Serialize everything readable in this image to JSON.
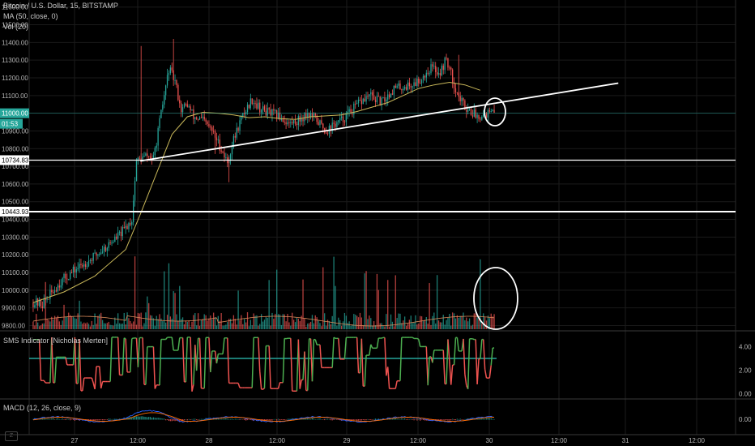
{
  "header": {
    "symbol_line": "Bitcoin / U.S. Dollar, 15, BITSTAMP",
    "ma_label": "MA (50, close, 0)",
    "vol_label": "Vol (20)"
  },
  "price_tags": {
    "current": "11000.00",
    "countdown": "01:53",
    "line_high": "10734.83",
    "line_low": "10443.93"
  },
  "sms_label": "SMS Indicator [Nicholas Merten]",
  "macd_label": "MACD (12, 26, close, 9)",
  "logo_text": "Z",
  "colors": {
    "background": "#000000",
    "up": "#26a69a",
    "down": "#ef5350",
    "ma": "#c9b85a",
    "sms_up": "#4caf50",
    "sms_down": "#ef5350",
    "current_price_tag": "#26a69a",
    "drawing": "#ffffff"
  },
  "chart_data": [
    {
      "type": "candlestick",
      "title": "Bitcoin / U.S. Dollar, 15, BITSTAMP",
      "y_axis_ticks": [
        "11600.00",
        "11500.00",
        "11400.00",
        "11300.00",
        "11200.00",
        "11100.00",
        "11000.00",
        "10900.00",
        "10800.00",
        "10700.00",
        "10600.00",
        "10500.00",
        "10400.00",
        "10300.00",
        "10200.00",
        "10100.00",
        "10000.00",
        "9900.00",
        "9800.00"
      ],
      "ylim": [
        9770,
        11640
      ],
      "x_axis_ticks": [
        "27",
        "12:00",
        "28",
        "12:00",
        "29",
        "12:00",
        "30",
        "12:00",
        "31",
        "12:00"
      ],
      "price_path": [
        [
          0,
          9930
        ],
        [
          6,
          9920
        ],
        [
          18,
          10050
        ],
        [
          28,
          10120
        ],
        [
          38,
          10180
        ],
        [
          48,
          10250
        ],
        [
          58,
          10330
        ],
        [
          64,
          10400
        ],
        [
          67,
          10730
        ],
        [
          74,
          10760
        ],
        [
          78,
          10740
        ],
        [
          84,
          11050
        ],
        [
          88,
          11250
        ],
        [
          92,
          11180
        ],
        [
          96,
          11020
        ],
        [
          100,
          11050
        ],
        [
          104,
          10980
        ],
        [
          110,
          10960
        ],
        [
          116,
          10900
        ],
        [
          122,
          10800
        ],
        [
          126,
          10720
        ],
        [
          130,
          10850
        ],
        [
          134,
          10950
        ],
        [
          138,
          11020
        ],
        [
          142,
          11080
        ],
        [
          148,
          11020
        ],
        [
          154,
          11000
        ],
        [
          160,
          10980
        ],
        [
          166,
          10940
        ],
        [
          172,
          10960
        ],
        [
          178,
          11000
        ],
        [
          184,
          10960
        ],
        [
          190,
          10900
        ],
        [
          196,
          10940
        ],
        [
          200,
          10960
        ],
        [
          206,
          11010
        ],
        [
          212,
          11060
        ],
        [
          218,
          11100
        ],
        [
          226,
          11060
        ],
        [
          234,
          11140
        ],
        [
          240,
          11150
        ],
        [
          246,
          11160
        ],
        [
          252,
          11200
        ],
        [
          258,
          11260
        ],
        [
          264,
          11230
        ],
        [
          268,
          11310
        ],
        [
          272,
          11190
        ],
        [
          276,
          11090
        ],
        [
          280,
          11040
        ],
        [
          284,
          11010
        ],
        [
          288,
          10985
        ],
        [
          293,
          11000
        ],
        [
          300,
          11000
        ]
      ],
      "ma_path": [
        [
          0,
          9930
        ],
        [
          20,
          9990
        ],
        [
          40,
          10080
        ],
        [
          60,
          10230
        ],
        [
          70,
          10440
        ],
        [
          80,
          10660
        ],
        [
          90,
          10880
        ],
        [
          100,
          10980
        ],
        [
          110,
          11005
        ],
        [
          120,
          11000
        ],
        [
          130,
          10990
        ],
        [
          140,
          10975
        ],
        [
          150,
          10980
        ],
        [
          160,
          10970
        ],
        [
          170,
          10965
        ],
        [
          180,
          10980
        ],
        [
          190,
          10985
        ],
        [
          200,
          10990
        ],
        [
          210,
          11010
        ],
        [
          220,
          11035
        ],
        [
          230,
          11060
        ],
        [
          240,
          11100
        ],
        [
          250,
          11140
        ],
        [
          260,
          11160
        ],
        [
          270,
          11175
        ],
        [
          280,
          11160
        ],
        [
          290,
          11130
        ]
      ],
      "horizontal_lines": [
        10734.83,
        10443.93
      ],
      "current_price": 11000.0,
      "trend_line": {
        "from": [
          70,
          10730
        ],
        "to": [
          380,
          11170
        ]
      },
      "annotation_ellipses": [
        {
          "x": 289,
          "y": 10995,
          "rx": 4.5,
          "ry": 55
        }
      ]
    },
    {
      "type": "bar",
      "title": "Vol (20)",
      "description_series": "volume histogram with 20-period moving average overlay"
    },
    {
      "type": "line",
      "title": "SMS Indicator [Nicholas Merten]",
      "y_axis_ticks": [
        "4.00",
        "2.00",
        "0.00"
      ],
      "ylim": [
        -0.3,
        5.2
      ],
      "reference_line": 3.0
    },
    {
      "type": "line",
      "title": "MACD (12, 26, close, 9)",
      "y_axis_ticks": [
        "0.00"
      ]
    }
  ]
}
